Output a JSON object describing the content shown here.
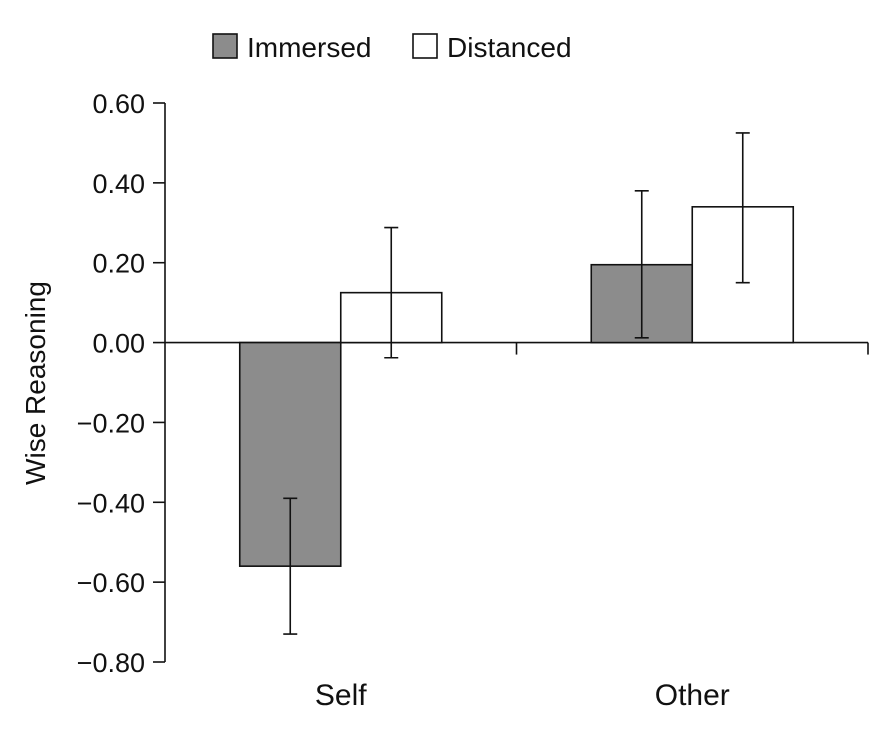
{
  "chart_data": {
    "type": "bar",
    "categories": [
      "Self",
      "Other"
    ],
    "series": [
      {
        "name": "Immersed",
        "color": "#8c8c8c",
        "values": [
          -0.56,
          0.195
        ],
        "error_low": [
          -0.73,
          0.012
        ],
        "error_high": [
          -0.39,
          0.38
        ]
      },
      {
        "name": "Distanced",
        "color": "#ffffff",
        "values": [
          0.125,
          0.34
        ],
        "error_low": [
          -0.038,
          0.15
        ],
        "error_high": [
          0.288,
          0.525
        ]
      }
    ],
    "ylabel": "Wise Reasoning",
    "ylim": [
      -0.8,
      0.6
    ],
    "yticks": [
      -0.8,
      -0.6,
      -0.4,
      -0.2,
      0.0,
      0.2,
      0.4,
      0.6
    ],
    "ytick_labels": [
      "−0.80",
      "−0.60",
      "−0.40",
      "−0.20",
      "0.00",
      "0.20",
      "0.40",
      "0.60"
    ],
    "legend_position": "top-left",
    "grid": false
  }
}
